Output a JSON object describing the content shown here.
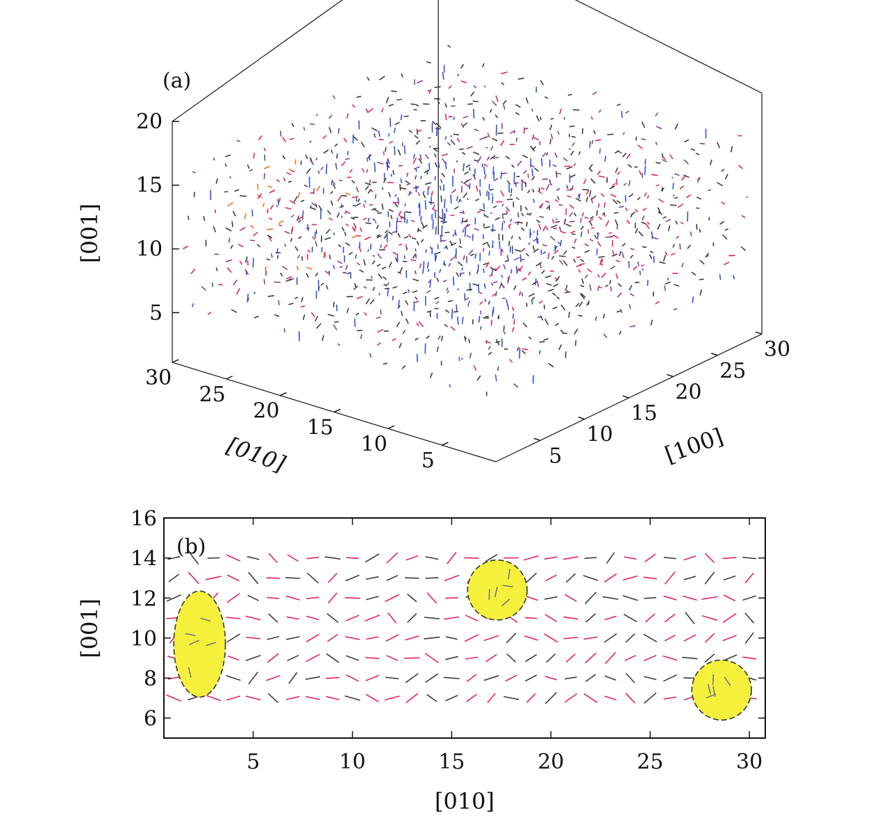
{
  "colors": {
    "vector_red": "#e0245a",
    "vector_dark": "#3a3a3a",
    "vector_blue": "#3050d0",
    "vector_purple": "#8a3a9a",
    "vector_orange": "#f07020",
    "region_fill": "#f5f03c"
  },
  "chart_data": [
    {
      "type": "scatter",
      "panel_label": "(a)",
      "projection": "3d",
      "axes": {
        "x": {
          "title": "[100]",
          "ticks": [
            "5",
            "10",
            "15",
            "20",
            "25",
            "30"
          ],
          "range": [
            0,
            30
          ]
        },
        "y": {
          "title": "[010]",
          "ticks": [
            "5",
            "10",
            "15",
            "20",
            "25",
            "30"
          ],
          "range": [
            0,
            30
          ]
        },
        "z": {
          "title": "[001]",
          "ticks": [
            "5",
            "10",
            "15",
            "20"
          ],
          "range": [
            3,
            20
          ]
        }
      },
      "series": [
        {
          "color": "blue",
          "region": {
            "x": [
              8,
              18
            ],
            "y": [
              8,
              20
            ],
            "z": [
              5,
              18
            ]
          }
        },
        {
          "color": "red",
          "region": {
            "x": [
              15,
              28
            ],
            "y": [
              3,
              12
            ],
            "z": [
              8,
              14
            ]
          }
        },
        {
          "color": "red",
          "region": {
            "x": [
              3,
              10
            ],
            "y": [
              20,
              30
            ],
            "z": [
              8,
              16
            ]
          }
        },
        {
          "color": "dark",
          "region": {
            "x": [
              1,
              30
            ],
            "y": [
              1,
              30
            ],
            "z": [
              6,
              16
            ]
          }
        }
      ],
      "grid": false
    },
    {
      "type": "scatter",
      "panel_label": "(b)",
      "xlabel": "[010]",
      "ylabel": "[001]",
      "xlim": [
        0.5,
        30.8
      ],
      "ylim": [
        5,
        16
      ],
      "xticks": [
        "5",
        "10",
        "15",
        "20",
        "25",
        "30"
      ],
      "yticks": [
        "6",
        "8",
        "10",
        "12",
        "14",
        "16"
      ],
      "vector_field": {
        "x": [
          1,
          30
        ],
        "y": [
          7,
          14
        ],
        "step": 1
      },
      "highlighted_regions": [
        {
          "shape": "ellipse",
          "center": [
            2.3,
            9.7
          ],
          "radius": [
            1.3,
            2.65
          ]
        },
        {
          "shape": "circle",
          "center": [
            17.3,
            12.4
          ],
          "radius": [
            1.5,
            1.5
          ]
        },
        {
          "shape": "circle",
          "center": [
            28.6,
            7.4
          ],
          "radius": [
            1.5,
            1.5
          ]
        }
      ],
      "grid": false
    }
  ]
}
